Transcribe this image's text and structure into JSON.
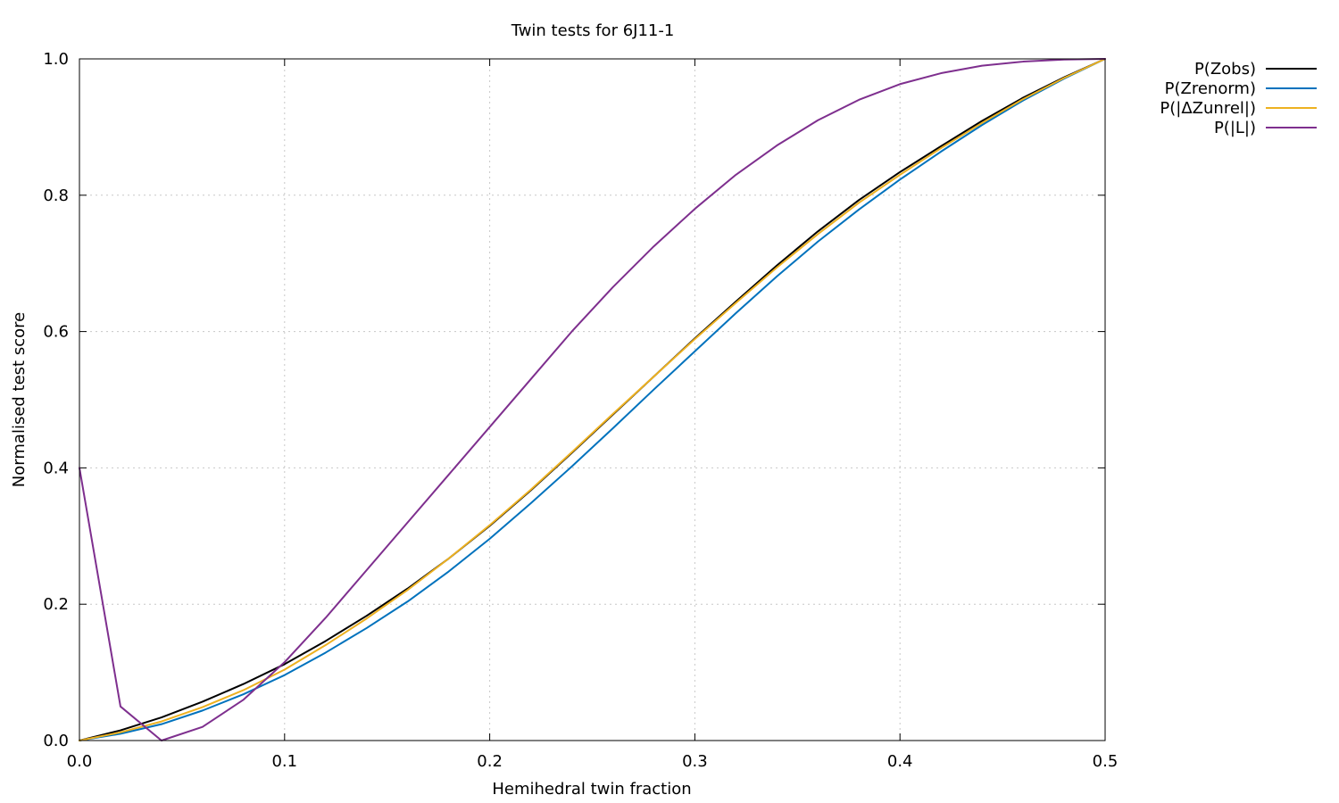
{
  "chart_data": {
    "type": "line",
    "title": "Twin tests for 6J11-1",
    "xlabel": "Hemihedral twin fraction",
    "ylabel": "Normalised test score",
    "xlim": [
      0.0,
      0.5
    ],
    "ylim": [
      0.0,
      1.0
    ],
    "xticks": [
      {
        "value": 0.0,
        "label": "0.0"
      },
      {
        "value": 0.1,
        "label": "0.1"
      },
      {
        "value": 0.2,
        "label": "0.2"
      },
      {
        "value": 0.3,
        "label": "0.3"
      },
      {
        "value": 0.4,
        "label": "0.4"
      },
      {
        "value": 0.5,
        "label": "0.5"
      }
    ],
    "yticks": [
      {
        "value": 0.0,
        "label": "0.0"
      },
      {
        "value": 0.2,
        "label": "0.2"
      },
      {
        "value": 0.4,
        "label": "0.4"
      },
      {
        "value": 0.6,
        "label": "0.6"
      },
      {
        "value": 0.8,
        "label": "0.8"
      },
      {
        "value": 1.0,
        "label": "1.0"
      }
    ],
    "grid": true,
    "legend_position": "outside-top-right",
    "x": [
      0.0,
      0.02,
      0.04,
      0.06,
      0.08,
      0.1,
      0.12,
      0.14,
      0.16,
      0.18,
      0.2,
      0.22,
      0.24,
      0.26,
      0.28,
      0.3,
      0.32,
      0.34,
      0.36,
      0.38,
      0.4,
      0.42,
      0.44,
      0.46,
      0.48,
      0.5
    ],
    "series": [
      {
        "name": "P(Zobs)",
        "color": "#000000",
        "values": [
          0.0,
          0.015,
          0.034,
          0.057,
          0.083,
          0.112,
          0.146,
          0.183,
          0.223,
          0.267,
          0.315,
          0.367,
          0.422,
          0.478,
          0.534,
          0.59,
          0.644,
          0.697,
          0.747,
          0.793,
          0.834,
          0.872,
          0.909,
          0.943,
          0.973,
          1.0
        ]
      },
      {
        "name": "P(Zrenorm)",
        "color": "#0072bd",
        "values": [
          0.0,
          0.01,
          0.024,
          0.044,
          0.068,
          0.096,
          0.129,
          0.165,
          0.204,
          0.248,
          0.296,
          0.348,
          0.402,
          0.458,
          0.515,
          0.571,
          0.627,
          0.681,
          0.732,
          0.779,
          0.823,
          0.864,
          0.903,
          0.939,
          0.971,
          1.0
        ]
      },
      {
        "name": "P(|ΔZunrel|)",
        "color": "#edb120",
        "values": [
          0.0,
          0.012,
          0.028,
          0.049,
          0.074,
          0.104,
          0.14,
          0.179,
          0.221,
          0.267,
          0.316,
          0.368,
          0.423,
          0.479,
          0.534,
          0.589,
          0.642,
          0.694,
          0.743,
          0.789,
          0.83,
          0.869,
          0.906,
          0.941,
          0.972,
          1.0
        ]
      },
      {
        "name": "P(|L|)",
        "color": "#7e2f8e",
        "values": [
          0.4,
          0.05,
          0.0,
          0.02,
          0.06,
          0.115,
          0.18,
          0.25,
          0.32,
          0.39,
          0.46,
          0.53,
          0.6,
          0.665,
          0.725,
          0.78,
          0.83,
          0.873,
          0.91,
          0.94,
          0.963,
          0.979,
          0.99,
          0.996,
          0.999,
          1.0
        ]
      }
    ]
  }
}
